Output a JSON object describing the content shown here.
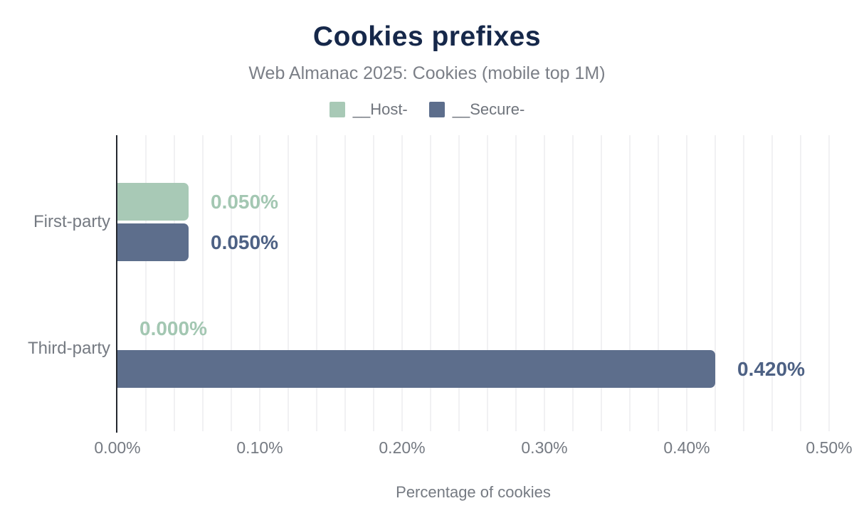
{
  "header": {
    "title": "Cookies prefixes",
    "subtitle": "Web Almanac 2025: Cookies (mobile top 1M)"
  },
  "legend": [
    {
      "label": "__Host-",
      "color": "#a8c9b6"
    },
    {
      "label": "__Secure-",
      "color": "#5d6e8c"
    }
  ],
  "chart_data": {
    "type": "bar",
    "orientation": "horizontal",
    "title": "Cookies prefixes",
    "subtitle": "Web Almanac 2025: Cookies (mobile top 1M)",
    "categories": [
      "First-party",
      "Third-party"
    ],
    "series": [
      {
        "name": "__Host-",
        "color": "#a8c9b6",
        "label_color": "#a3c7b2",
        "values": [
          0.05,
          0.0
        ],
        "value_labels": [
          "0.050%",
          "0.000%"
        ]
      },
      {
        "name": "__Secure-",
        "color": "#5d6e8c",
        "label_color": "#4d6184",
        "values": [
          0.05,
          0.42
        ],
        "value_labels": [
          "0.050%",
          "0.420%"
        ]
      }
    ],
    "xlabel": "Percentage of cookies",
    "xlim": [
      0,
      0.5
    ],
    "x_ticks": [
      {
        "value": 0.0,
        "label": "0.00%"
      },
      {
        "value": 0.1,
        "label": "0.10%"
      },
      {
        "value": 0.2,
        "label": "0.20%"
      },
      {
        "value": 0.3,
        "label": "0.30%"
      },
      {
        "value": 0.4,
        "label": "0.40%"
      },
      {
        "value": 0.5,
        "label": "0.50%"
      }
    ],
    "minor_grid_step": 0.02,
    "grid": true,
    "legend_position": "top",
    "axis_color": "#23272e",
    "grid_color": "#f1f1f3",
    "text_color": "#757a82",
    "title_color": "#16284a"
  }
}
